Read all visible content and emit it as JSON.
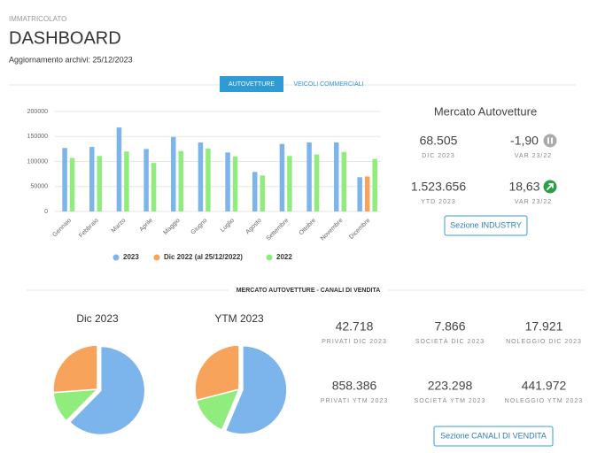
{
  "header": {
    "pretitle": "IMMATRICOLATO",
    "title": "DASHBOARD",
    "update": "Aggiornamento archivi: 25/12/2023"
  },
  "tabs": [
    "AUTOVETTURE",
    "VEICOLI COMMERCIALI"
  ],
  "chart_data": [
    {
      "type": "bar",
      "categories": [
        "Gennaio",
        "Febbraio",
        "Marzo",
        "Aprile",
        "Maggio",
        "Giugno",
        "Luglio",
        "Agosto",
        "Settembre",
        "Ottobre",
        "Novembre",
        "Dicembre"
      ],
      "series": [
        {
          "name": "2023",
          "color": "#7cb5ec",
          "values": [
            127000,
            129000,
            168000,
            125000,
            149000,
            138000,
            118000,
            79000,
            135000,
            138000,
            138000,
            68505
          ]
        },
        {
          "name": "Dic 2022 (al 25/12/2022)",
          "color": "#f7a35c",
          "values": [
            null,
            null,
            null,
            null,
            null,
            null,
            null,
            null,
            null,
            null,
            null,
            70000
          ]
        },
        {
          "name": "2022",
          "color": "#90ed7d",
          "values": [
            107000,
            111000,
            120000,
            97000,
            121000,
            126000,
            110000,
            72000,
            111000,
            114000,
            119000,
            105000
          ]
        }
      ],
      "ylim": [
        0,
        200000
      ],
      "yticks": [
        0,
        50000,
        100000,
        150000,
        200000
      ],
      "grid": true,
      "legend": "bottom"
    },
    {
      "type": "pie",
      "title": "Dic 2023",
      "values": [
        42718,
        7866,
        17921
      ],
      "colors": [
        "#7cb5ec",
        "#90ed7d",
        "#f7a35c"
      ]
    },
    {
      "type": "pie",
      "title": "YTM 2023",
      "values": [
        858386,
        223298,
        441972
      ],
      "colors": [
        "#7cb5ec",
        "#90ed7d",
        "#f7a35c"
      ]
    }
  ],
  "kpi": {
    "title": "Mercato Autovetture",
    "items": [
      {
        "value": "68.505",
        "label": "DIC 2023"
      },
      {
        "value": "-1,90",
        "label": "VAR 23/22"
      },
      {
        "value": "1.523.656",
        "label": "YTD 2023"
      },
      {
        "value": "18,63",
        "label": "VAR 23/22"
      }
    ],
    "button": "Sezione INDUSTRY"
  },
  "channels": {
    "title": "MERCATO AUTOVETTURE - CANALI DI VENDITA",
    "items": [
      {
        "value": "42.718",
        "label": "PRIVATI DIC 2023"
      },
      {
        "value": "7.866",
        "label": "SOCIETÀ DIC 2023"
      },
      {
        "value": "17.921",
        "label": "NOLEGGIO DIC 2023"
      },
      {
        "value": "858.386",
        "label": "PRIVATI YTM 2023"
      },
      {
        "value": "223.298",
        "label": "SOCIETÀ YTM 2023"
      },
      {
        "value": "441.972",
        "label": "NOLEGGIO YTM 2023"
      }
    ],
    "button": "Sezione CANALI DI VENDITA"
  }
}
